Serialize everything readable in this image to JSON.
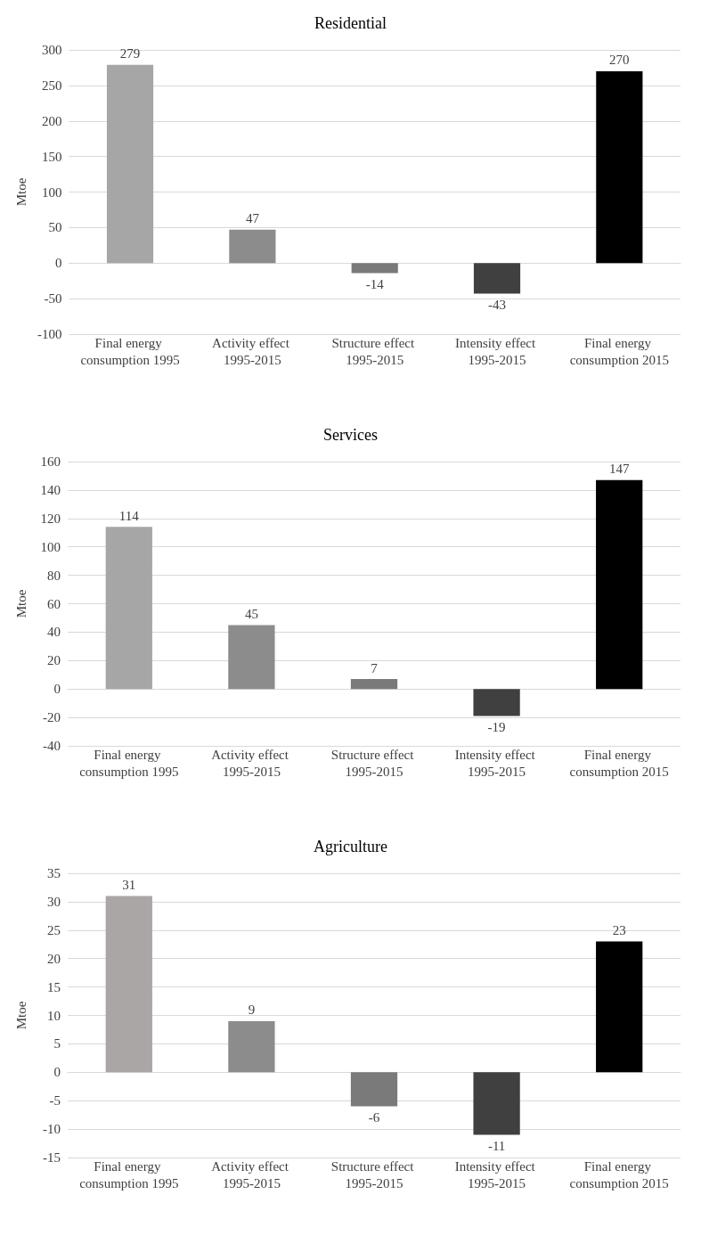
{
  "chart_data": [
    {
      "type": "bar",
      "title": "Residential",
      "ylabel": "Mtoe",
      "categories": [
        "Final energy consumption 1995",
        "Activity effect 1995-2015",
        "Structure effect 1995-2015",
        "Intensity effect 1995-2015",
        "Final energy consumption 2015"
      ],
      "values": [
        279,
        47,
        -14,
        -43,
        270
      ],
      "colors": [
        "#a6a6a6",
        "#8c8c8c",
        "#7a7a7a",
        "#404040",
        "#000000"
      ],
      "ylim": [
        -100,
        300
      ],
      "yticks": [
        -100,
        -50,
        0,
        50,
        100,
        150,
        200,
        250,
        300
      ],
      "grid": "y",
      "data_labels": true
    },
    {
      "type": "bar",
      "title": "Services",
      "ylabel": "Mtoe",
      "categories": [
        "Final energy consumption 1995",
        "Activity effect 1995-2015",
        "Structure effect 1995-2015",
        "Intensity effect 1995-2015",
        "Final energy consumption 2015"
      ],
      "values": [
        114,
        45,
        7,
        -19,
        147
      ],
      "colors": [
        "#a6a6a6",
        "#8c8c8c",
        "#7a7a7a",
        "#404040",
        "#000000"
      ],
      "ylim": [
        -40,
        160
      ],
      "yticks": [
        -40,
        -20,
        0,
        20,
        40,
        60,
        80,
        100,
        120,
        140,
        160
      ],
      "grid": "y",
      "data_labels": true
    },
    {
      "type": "bar",
      "title": "Agriculture",
      "ylabel": "Mtoe",
      "categories": [
        "Final energy consumption 1995",
        "Activity effect 1995-2015",
        "Structure effect 1995-2015",
        "Intensity effect 1995-2015",
        "Final energy consumption 2015"
      ],
      "values": [
        31,
        9,
        -6,
        -11,
        23
      ],
      "colors": [
        "#aaa6a6",
        "#8c8c8c",
        "#7a7a7a",
        "#404040",
        "#000000"
      ],
      "ylim": [
        -15,
        35
      ],
      "yticks": [
        -15,
        -10,
        -5,
        0,
        5,
        10,
        15,
        20,
        25,
        30,
        35
      ],
      "grid": "y",
      "data_labels": true
    }
  ]
}
